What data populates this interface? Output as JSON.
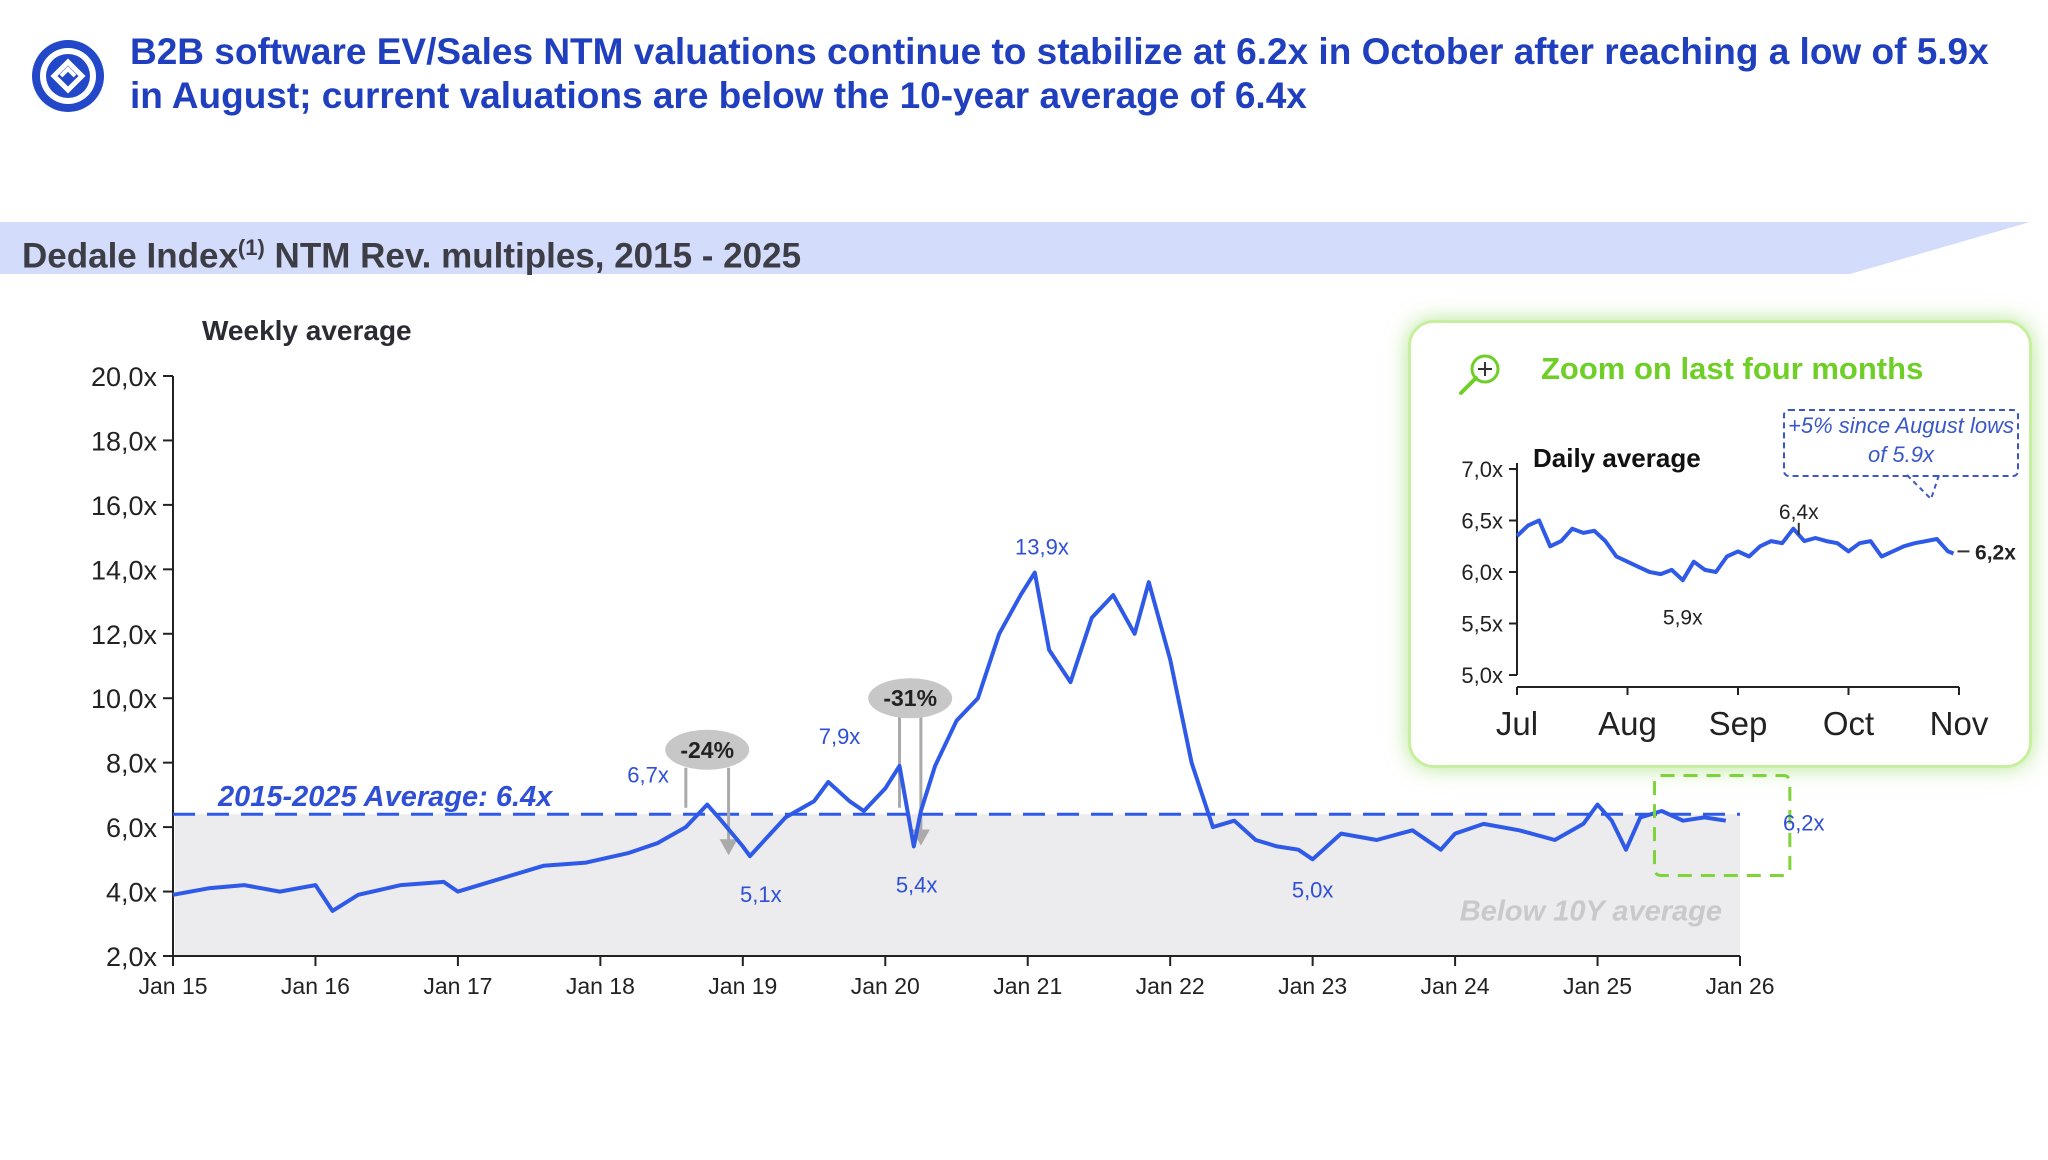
{
  "headline": "B2B software EV/Sales NTM valuations continue to stabilize at 6.2x in October after reaching a low of 5.9x in August; current valuations are below the 10-year average of 6.4x",
  "banner": {
    "title": "Dedale Index",
    "superscript": "(1)",
    "title_rest": " NTM Rev. multiples, 2015 - 2025"
  },
  "colors": {
    "brand": "#1f3fbf",
    "line": "#2f5ae8",
    "accent_green": "#6fcf26",
    "banner_bg": "#d4dcfb",
    "band": "#ececee"
  },
  "chart_data": [
    {
      "type": "line",
      "title": "Weekly average",
      "ylabel": "",
      "ylim": [
        2,
        20
      ],
      "yticks": [
        "2,0x",
        "4,0x",
        "6,0x",
        "8,0x",
        "10,0x",
        "12,0x",
        "14,0x",
        "16,0x",
        "18,0x",
        "20,0x"
      ],
      "xticks": [
        "Jan 15",
        "Jan 16",
        "Jan 17",
        "Jan 18",
        "Jan 19",
        "Jan 20",
        "Jan 21",
        "Jan 22",
        "Jan 23",
        "Jan 24",
        "Jan 25",
        "Jan 26"
      ],
      "xlim": [
        2015.0,
        2026.0
      ],
      "average": {
        "value": 6.4,
        "label": "2015-2025 Average: 6.4x"
      },
      "band_label": "Below 10Y average",
      "series": [
        {
          "name": "Dedale Index NTM Rev. multiple",
          "x": [
            2015.0,
            2015.25,
            2015.5,
            2015.75,
            2016.0,
            2016.12,
            2016.3,
            2016.6,
            2016.9,
            2017.0,
            2017.3,
            2017.6,
            2017.9,
            2018.2,
            2018.4,
            2018.6,
            2018.75,
            2018.85,
            2019.0,
            2019.05,
            2019.3,
            2019.5,
            2019.6,
            2019.75,
            2019.85,
            2020.0,
            2020.1,
            2020.2,
            2020.25,
            2020.35,
            2020.5,
            2020.65,
            2020.8,
            2020.95,
            2021.05,
            2021.15,
            2021.3,
            2021.45,
            2021.6,
            2021.75,
            2021.85,
            2022.0,
            2022.15,
            2022.3,
            2022.45,
            2022.6,
            2022.75,
            2022.9,
            2023.0,
            2023.2,
            2023.45,
            2023.7,
            2023.9,
            2024.0,
            2024.2,
            2024.45,
            2024.7,
            2024.9,
            2025.0,
            2025.1,
            2025.2,
            2025.3,
            2025.45,
            2025.6,
            2025.75,
            2025.9
          ],
          "values": [
            3.9,
            4.1,
            4.2,
            4.0,
            4.2,
            3.4,
            3.9,
            4.2,
            4.3,
            4.0,
            4.4,
            4.8,
            4.9,
            5.2,
            5.5,
            6.0,
            6.7,
            6.2,
            5.4,
            5.1,
            6.3,
            6.8,
            7.4,
            6.8,
            6.5,
            7.2,
            7.9,
            5.4,
            6.5,
            7.9,
            9.3,
            10.0,
            12.0,
            13.2,
            13.9,
            11.5,
            10.5,
            12.5,
            13.2,
            12.0,
            13.6,
            11.2,
            8.0,
            6.0,
            6.2,
            5.6,
            5.4,
            5.3,
            5.0,
            5.8,
            5.6,
            5.9,
            5.3,
            5.8,
            6.1,
            5.9,
            5.6,
            6.1,
            6.7,
            6.2,
            5.3,
            6.3,
            6.5,
            6.2,
            6.3,
            6.2
          ]
        }
      ],
      "annotations": [
        {
          "x": 2018.7,
          "y": 6.7,
          "label": "6,7x"
        },
        {
          "x": 2019.0,
          "y": 5.1,
          "label": "5,1x"
        },
        {
          "x": 2020.1,
          "y": 7.9,
          "label": "7,9x"
        },
        {
          "x": 2020.22,
          "y": 5.4,
          "label": "5,4x"
        },
        {
          "x": 2021.1,
          "y": 13.9,
          "label": "13,9x"
        },
        {
          "x": 2023.0,
          "y": 5.0,
          "label": "5,0x"
        },
        {
          "x": 2025.9,
          "y": 6.2,
          "label": "6,2x"
        }
      ],
      "drawdowns": [
        {
          "label": "-24%",
          "x_from": 2018.6,
          "x_to": 2018.9
        },
        {
          "label": "-31%",
          "x_from": 2020.1,
          "x_to": 2020.25
        }
      ]
    },
    {
      "type": "line",
      "title": "Zoom on last four months",
      "subtitle": "Daily average",
      "ylim": [
        5.0,
        7.0
      ],
      "yticks": [
        "5,0x",
        "5,5x",
        "6,0x",
        "6,5x",
        "7,0x"
      ],
      "xticks": [
        "Jul",
        "Aug",
        "Sep",
        "Oct",
        "Nov"
      ],
      "xlim": [
        0,
        4
      ],
      "callout": "+5% since August lows of 5.9x",
      "series": [
        {
          "name": "Daily average",
          "x": [
            0.0,
            0.1,
            0.2,
            0.3,
            0.4,
            0.5,
            0.6,
            0.7,
            0.8,
            0.9,
            1.0,
            1.1,
            1.2,
            1.3,
            1.4,
            1.5,
            1.6,
            1.7,
            1.8,
            1.9,
            2.0,
            2.1,
            2.2,
            2.3,
            2.4,
            2.5,
            2.6,
            2.7,
            2.8,
            2.9,
            3.0,
            3.1,
            3.2,
            3.3,
            3.4,
            3.5,
            3.6,
            3.7,
            3.8,
            3.9,
            3.95
          ],
          "values": [
            6.35,
            6.45,
            6.5,
            6.25,
            6.3,
            6.42,
            6.38,
            6.4,
            6.3,
            6.15,
            6.1,
            6.05,
            6.0,
            5.98,
            6.02,
            5.92,
            6.1,
            6.02,
            6.0,
            6.15,
            6.2,
            6.15,
            6.25,
            6.3,
            6.28,
            6.42,
            6.3,
            6.33,
            6.3,
            6.28,
            6.2,
            6.28,
            6.3,
            6.15,
            6.2,
            6.25,
            6.28,
            6.3,
            6.32,
            6.2,
            6.18
          ]
        }
      ],
      "annotations": [
        {
          "x": 1.5,
          "y": 5.9,
          "label": "5,9x"
        },
        {
          "x": 2.55,
          "y": 6.4,
          "label": "6,4x"
        },
        {
          "x": 3.95,
          "y": 6.2,
          "label": "6,2x"
        }
      ]
    }
  ]
}
